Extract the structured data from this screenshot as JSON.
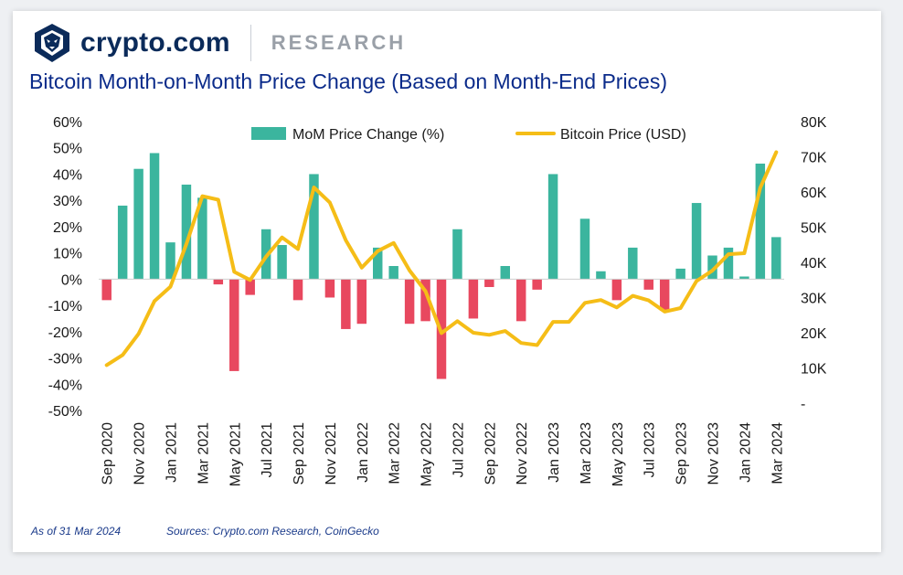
{
  "brand": {
    "name": "crypto.com",
    "section": "RESEARCH",
    "logo_icon": "lion-shield-icon"
  },
  "title": "Bitcoin Month-on-Month Price Change (Based on Month-End Prices)",
  "footer": {
    "as_of": "As of 31 Mar 2024",
    "sources": "Sources: Crypto.com Research, CoinGecko"
  },
  "colors": {
    "positive": "#3bb59e",
    "negative": "#e8485f",
    "line": "#f5bd17",
    "brand": "#0b2b5a"
  },
  "chart_data": {
    "type": "bar+line",
    "title": "Bitcoin Month-on-Month Price Change (Based on Month-End Prices)",
    "legend": [
      "MoM Price Change (%)",
      "Bitcoin Price (USD)"
    ],
    "legend_position": "top",
    "categories": [
      "Sep 2020",
      "Oct 2020",
      "Nov 2020",
      "Dec 2020",
      "Jan 2021",
      "Feb 2021",
      "Mar 2021",
      "Apr 2021",
      "May 2021",
      "Jun 2021",
      "Jul 2021",
      "Aug 2021",
      "Sep 2021",
      "Oct 2021",
      "Nov 2021",
      "Dec 2021",
      "Jan 2022",
      "Feb 2022",
      "Mar 2022",
      "Apr 2022",
      "May 2022",
      "Jun 2022",
      "Jul 2022",
      "Aug 2022",
      "Sep 2022",
      "Oct 2022",
      "Nov 2022",
      "Dec 2022",
      "Jan 2023",
      "Feb 2023",
      "Mar 2023",
      "Apr 2023",
      "May 2023",
      "Jun 2023",
      "Jul 2023",
      "Aug 2023",
      "Sep 2023",
      "Oct 2023",
      "Nov 2023",
      "Dec 2023",
      "Jan 2024",
      "Feb 2024",
      "Mar 2024"
    ],
    "x_tick_labels": [
      "Sep 2020",
      "Nov 2020",
      "Jan 2021",
      "Mar 2021",
      "May 2021",
      "Jul 2021",
      "Sep 2021",
      "Nov 2021",
      "Jan 2022",
      "Mar 2022",
      "May 2022",
      "Jul 2022",
      "Sep 2022",
      "Nov 2022",
      "Jan 2023",
      "Mar 2023",
      "May 2023",
      "Jul 2023",
      "Sep 2023",
      "Nov 2023",
      "Jan 2024",
      "Mar 2024"
    ],
    "series": [
      {
        "name": "MoM Price Change (%)",
        "type": "bar",
        "axis": "left",
        "values": [
          -8,
          28,
          42,
          48,
          14,
          36,
          31,
          -2,
          -35,
          -6,
          19,
          13,
          -8,
          40,
          -7,
          -19,
          -17,
          12,
          5,
          -17,
          -16,
          -38,
          19,
          -15,
          -3,
          5,
          -16,
          -4,
          40,
          0,
          23,
          3,
          -8,
          12,
          -4,
          -12,
          4,
          29,
          9,
          12,
          1,
          44,
          16
        ]
      },
      {
        "name": "Bitcoin Price (USD)",
        "type": "line",
        "axis": "right",
        "values": [
          10800,
          13700,
          19700,
          29000,
          33100,
          45200,
          58800,
          57800,
          37300,
          35000,
          41600,
          47100,
          43800,
          61300,
          57000,
          46300,
          38500,
          43200,
          45500,
          37700,
          31800,
          19900,
          23300,
          20000,
          19400,
          20500,
          17100,
          16500,
          23100,
          23100,
          28500,
          29300,
          27200,
          30500,
          29200,
          26000,
          27000,
          34700,
          37700,
          42300,
          42600,
          61200,
          71300
        ]
      }
    ],
    "y_left": {
      "min": -50,
      "max": 60,
      "step": 10,
      "tick_labels": [
        "-50%",
        "-40%",
        "-30%",
        "-20%",
        "-10%",
        "0%",
        "10%",
        "20%",
        "30%",
        "40%",
        "50%",
        "60%"
      ]
    },
    "y_right": {
      "min": 0,
      "max": 80000,
      "step": 10000,
      "tick_labels": [
        "-",
        "10K",
        "20K",
        "30K",
        "40K",
        "50K",
        "60K",
        "70K",
        "80K"
      ]
    },
    "grid": false
  }
}
